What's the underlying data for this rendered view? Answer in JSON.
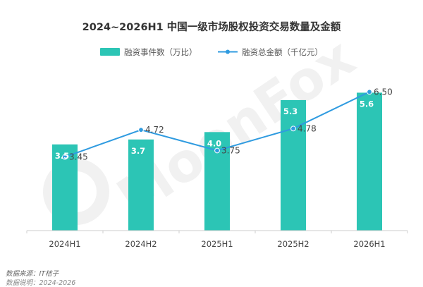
{
  "chart_data": {
    "type": "bar",
    "title": "2024~2026H1 中国一级市场股权投资交易数量及金额",
    "categories": [
      "2024H1",
      "2024H2",
      "2025H1",
      "2025H2",
      "2026H1"
    ],
    "series": [
      {
        "name": "融资事件数（万比）",
        "type": "bar",
        "axis": "left",
        "color": "#2cc5b5",
        "values": [
          3.5,
          3.7,
          4.0,
          5.3,
          5.6
        ],
        "labels": [
          "3.5",
          "3.7",
          "4.0",
          "5.3",
          "5.6"
        ]
      },
      {
        "name": "融资总金额（千亿元）",
        "type": "line",
        "axis": "right",
        "color": "#2f9be0",
        "values": [
          3.45,
          4.72,
          3.75,
          4.78,
          6.5
        ],
        "labels": [
          "3.45",
          "4.72",
          "3.75",
          "4.78",
          "6.50"
        ]
      }
    ],
    "ylim_left": [
      0,
      6.5
    ],
    "ylim_right": [
      0,
      7.5
    ],
    "grid": false,
    "legend_position": "top-center",
    "watermark": "MoonFox"
  },
  "footer": {
    "source": "数据来源：IT桔子",
    "cut_off": "数据说明：2024-2026"
  }
}
